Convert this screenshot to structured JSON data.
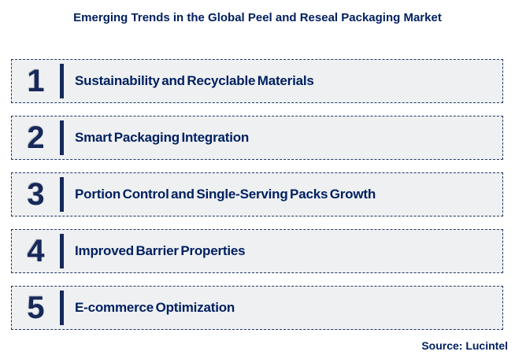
{
  "title": "Emerging Trends in the Global Peel and Reseal Packaging Market",
  "items": [
    {
      "number": "1",
      "label": "Sustainability and Recyclable Materials"
    },
    {
      "number": "2",
      "label": "Smart Packaging Integration"
    },
    {
      "number": "3",
      "label": "Portion Control and Single-Serving Packs Growth"
    },
    {
      "number": "4",
      "label": "Improved Barrier Properties"
    },
    {
      "number": "5",
      "label": "E-commerce Optimization"
    }
  ],
  "source": "Source: Lucintel",
  "colors": {
    "page_background": "#ffffff",
    "title_text": "#002060",
    "item_text": "#002060",
    "number_text": "#17295a",
    "number_shadow": "#c0c4ca",
    "accent_bar": "#17295a",
    "border": "#1f3864",
    "item_background": "#eef0f2"
  }
}
